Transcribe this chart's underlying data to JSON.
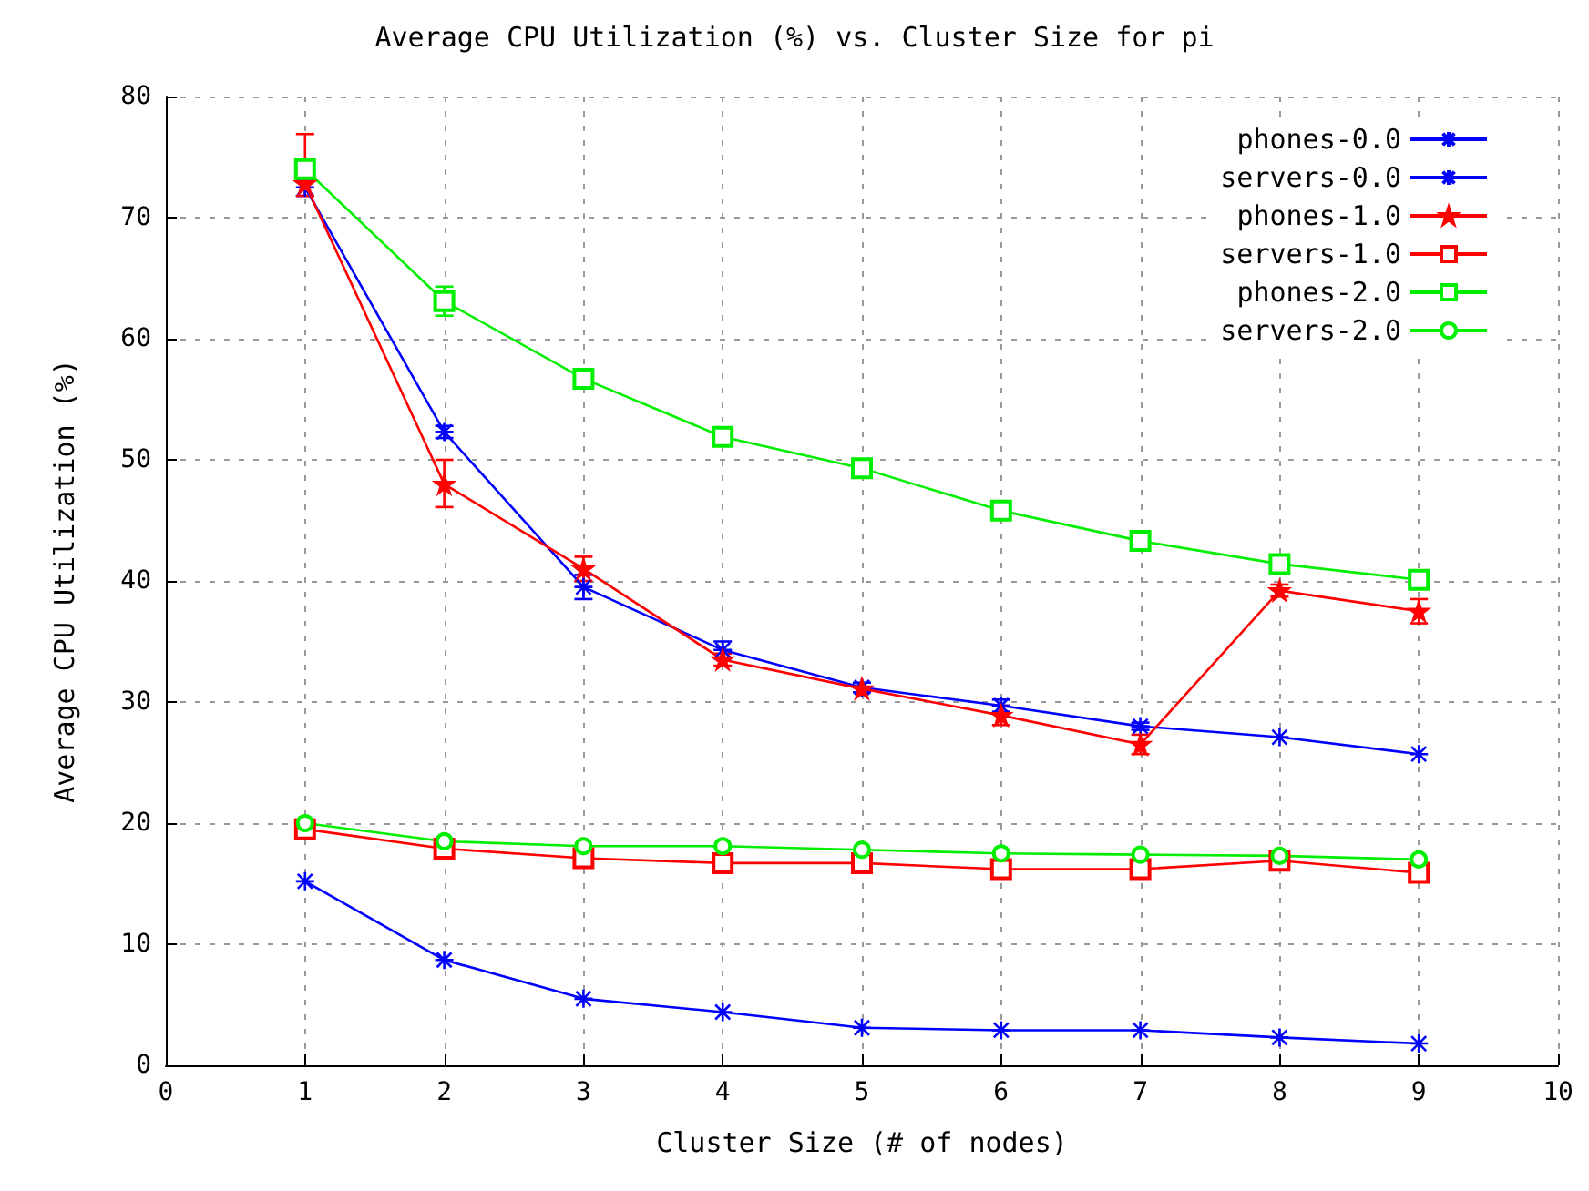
{
  "chart_data": {
    "type": "line",
    "title": "Average CPU Utilization (%) vs. Cluster Size for pi",
    "xlabel": "Cluster Size (# of nodes)",
    "ylabel": "Average CPU Utilization (%)",
    "x": [
      1,
      2,
      3,
      4,
      5,
      6,
      7,
      8,
      9
    ],
    "xlim": [
      0,
      10
    ],
    "xticks": [
      0,
      1,
      2,
      3,
      4,
      5,
      6,
      7,
      8,
      9,
      10
    ],
    "ylim": [
      0,
      80
    ],
    "yticks": [
      0,
      10,
      20,
      30,
      40,
      50,
      60,
      70,
      80
    ],
    "grid": true,
    "legend": "top right",
    "series": [
      {
        "name": "phones-0.0",
        "color": "#0000ff",
        "marker": "cross",
        "values": [
          72.5,
          52.3,
          39.5,
          34.3,
          31.2,
          29.7,
          28,
          27.1,
          25.7
        ],
        "errors": [
          0.7,
          0.5,
          1,
          0.7,
          0.4,
          0.5,
          0.3,
          null,
          null
        ]
      },
      {
        "name": "servers-0.0",
        "color": "#0000ff",
        "marker": "cross",
        "values": [
          15.2,
          8.7,
          5.5,
          4.4,
          3.1,
          2.9,
          2.9,
          2.3,
          1.8
        ]
      },
      {
        "name": "phones-1.0",
        "color": "#ff0000",
        "marker": "star",
        "values": [
          72.8,
          48,
          41,
          33.5,
          31.1,
          28.9,
          26.5,
          39.2,
          37.5
        ],
        "errors": [
          [
            71.8,
            76.9
          ],
          [
            46.1,
            50
          ],
          1,
          0.5,
          null,
          0.8,
          0.8,
          0.5,
          1
        ]
      },
      {
        "name": "servers-1.0",
        "color": "#ff0000",
        "marker": "square",
        "values": [
          19.5,
          17.9,
          17.1,
          16.7,
          16.7,
          16.2,
          16.2,
          16.9,
          15.9
        ]
      },
      {
        "name": "phones-2.0",
        "color": "#00ee00",
        "marker": "square",
        "values": [
          74,
          63.1,
          56.7,
          51.9,
          49.3,
          45.8,
          43.3,
          41.4,
          40.1
        ],
        "errors": [
          null,
          1.2,
          null,
          null,
          null,
          null,
          null,
          null,
          null
        ]
      },
      {
        "name": "servers-2.0",
        "color": "#00ee00",
        "marker": "circle",
        "values": [
          20,
          18.5,
          18.1,
          18.1,
          17.8,
          17.5,
          17.4,
          17.3,
          17
        ]
      }
    ]
  }
}
